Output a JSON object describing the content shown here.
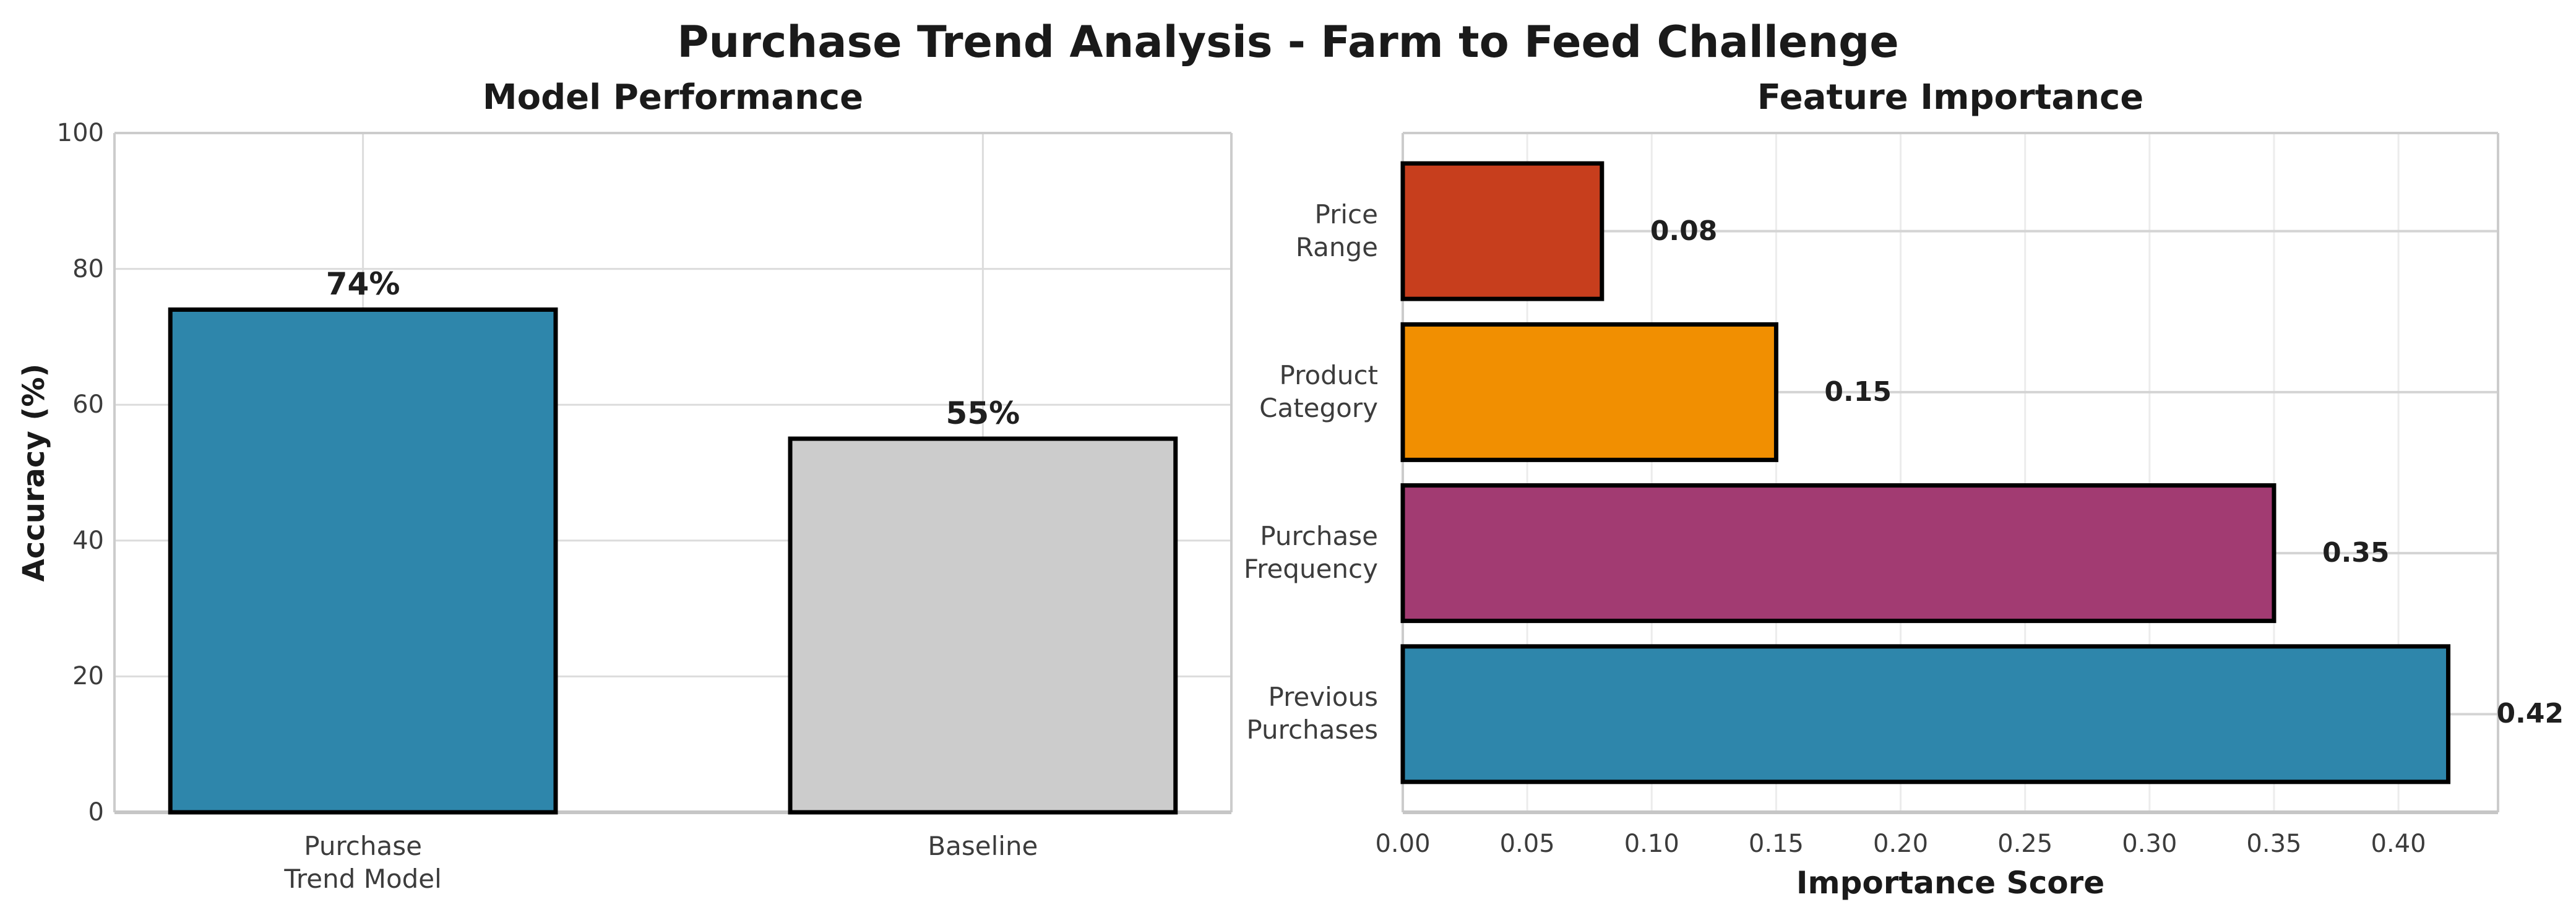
{
  "figure": {
    "suptitle": "Purchase Trend Analysis - Farm to Feed Challenge",
    "background_color": "#ffffff",
    "title_color": "#1a1a1a"
  },
  "chart_data": [
    {
      "type": "bar",
      "title": "Model Performance",
      "ylabel": "Accuracy (%)",
      "xlabel": "",
      "categories": [
        "Purchase\nTrend Model",
        "Baseline"
      ],
      "values": [
        74,
        55
      ],
      "value_labels": [
        "74%",
        "55%"
      ],
      "bar_colors": [
        "#2E86AB",
        "#CCCCCC"
      ],
      "bar_edge_color": "#000000",
      "ylim": [
        0,
        100
      ],
      "yticks": [
        0,
        20,
        40,
        60,
        80,
        100
      ],
      "ytick_labels": [
        "0",
        "20",
        "40",
        "60",
        "80",
        "100"
      ],
      "grid": true,
      "legend": false
    },
    {
      "type": "bar-horizontal",
      "title": "Feature Importance",
      "xlabel": "Importance Score",
      "ylabel": "",
      "categories": [
        "Price\nRange",
        "Product\nCategory",
        "Purchase\nFrequency",
        "Previous\nPurchases"
      ],
      "values": [
        0.08,
        0.15,
        0.35,
        0.42
      ],
      "value_labels": [
        "0.08",
        "0.15",
        "0.35",
        "0.42"
      ],
      "bar_colors": [
        "#C73E1D",
        "#F18F01",
        "#A23B72",
        "#2E86AB"
      ],
      "bar_edge_color": "#000000",
      "xlim": [
        0,
        0.44
      ],
      "xticks": [
        0,
        0.05,
        0.1,
        0.15,
        0.2,
        0.25,
        0.3,
        0.35,
        0.4
      ],
      "xtick_labels": [
        "0.00",
        "0.05",
        "0.10",
        "0.15",
        "0.20",
        "0.25",
        "0.30",
        "0.35",
        "0.40"
      ],
      "grid": true,
      "legend": false
    }
  ]
}
